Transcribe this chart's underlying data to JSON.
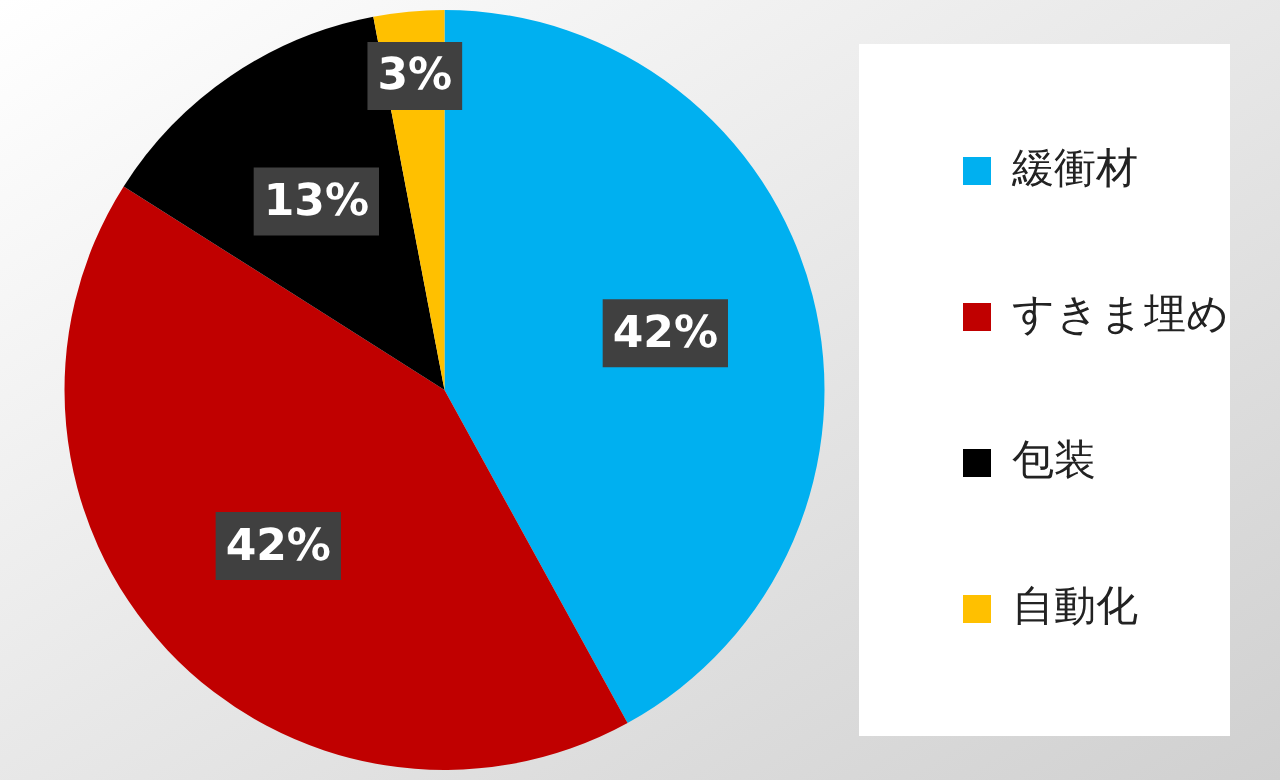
{
  "chart_data": {
    "type": "pie",
    "categories": [
      "緩衝材",
      "すきま埋め",
      "包装",
      "自動化"
    ],
    "values": [
      42,
      42,
      13,
      3
    ],
    "colors": [
      "#00b0f0",
      "#c00000",
      "#000000",
      "#ffc000"
    ],
    "value_labels": [
      "42%",
      "42%",
      "13%",
      "3%"
    ],
    "legend": "right"
  }
}
